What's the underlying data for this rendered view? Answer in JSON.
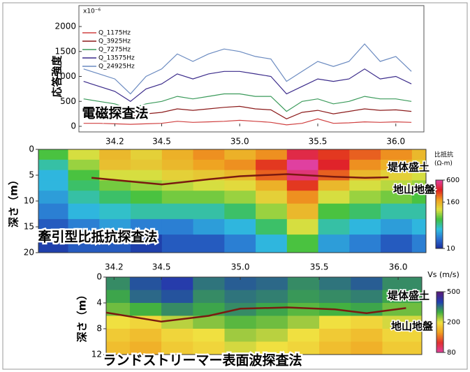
{
  "chart_data": [
    {
      "type": "line",
      "ylabel": "応答強度",
      "yunit": "x10⁻⁶",
      "xlim": [
        33.97,
        36.18
      ],
      "xticks": [
        34.2,
        34.5,
        {
          "value": 35,
          "label": "35.0"
        },
        35.5,
        {
          "value": 36,
          "label": "36.0"
        }
      ],
      "ylim": [
        0,
        2000
      ],
      "yticks": [
        0,
        500,
        1000,
        1500,
        2000
      ],
      "x": [
        34.0,
        34.1,
        34.2,
        34.3,
        34.4,
        34.5,
        34.6,
        34.7,
        34.8,
        34.9,
        35.0,
        35.1,
        35.2,
        35.3,
        35.4,
        35.5,
        35.6,
        35.7,
        35.8,
        35.9,
        36.0,
        36.1
      ],
      "series": [
        {
          "name": "Q_1175Hz",
          "color": "#d04040",
          "values": [
            60,
            60,
            50,
            40,
            50,
            60,
            100,
            80,
            90,
            100,
            120,
            100,
            80,
            30,
            60,
            150,
            60,
            70,
            90,
            80,
            90,
            80
          ]
        },
        {
          "name": "Q_3925Hz",
          "color": "#8b1a1a",
          "values": [
            300,
            270,
            240,
            200,
            250,
            280,
            350,
            320,
            350,
            380,
            400,
            350,
            330,
            150,
            280,
            320,
            250,
            300,
            350,
            320,
            330,
            300
          ]
        },
        {
          "name": "Q_7275Hz",
          "color": "#3a9a5a",
          "values": [
            550,
            500,
            450,
            350,
            450,
            500,
            600,
            550,
            600,
            650,
            650,
            600,
            600,
            300,
            500,
            550,
            450,
            500,
            600,
            550,
            550,
            500
          ]
        },
        {
          "name": "Q_13575Hz",
          "color": "#3a2a8a",
          "values": [
            900,
            800,
            700,
            500,
            750,
            850,
            1050,
            950,
            1050,
            1100,
            1100,
            1050,
            1000,
            650,
            800,
            950,
            900,
            950,
            1150,
            950,
            1000,
            850
          ]
        },
        {
          "name": "Q_24925Hz",
          "color": "#6a8ac0",
          "values": [
            1150,
            1050,
            950,
            650,
            1000,
            1150,
            1450,
            1300,
            1450,
            1550,
            1500,
            1400,
            1350,
            900,
            1100,
            1300,
            1200,
            1300,
            1650,
            1300,
            1400,
            1100
          ]
        }
      ],
      "annotations": [
        "電磁探査法"
      ]
    },
    {
      "type": "heatmap",
      "ylabel": "深さ（m）",
      "xlim": [
        33.71,
        36.19
      ],
      "ylim": [
        0,
        20
      ],
      "yticks": [
        0,
        5,
        10,
        15,
        20
      ],
      "x": [
        33.8,
        34.0,
        34.2,
        34.4,
        34.6,
        34.8,
        35.0,
        35.2,
        35.4,
        35.6,
        35.8,
        36.0,
        36.2
      ],
      "y": [
        1,
        3,
        5,
        7,
        9,
        12,
        15,
        18
      ],
      "z": [
        [
          60,
          100,
          150,
          120,
          160,
          200,
          160,
          200,
          400,
          300,
          250,
          200,
          150
        ],
        [
          40,
          80,
          140,
          130,
          150,
          180,
          200,
          300,
          600,
          350,
          200,
          160,
          120
        ],
        [
          30,
          60,
          100,
          100,
          120,
          130,
          150,
          250,
          500,
          250,
          150,
          120,
          100
        ],
        [
          30,
          50,
          70,
          80,
          90,
          100,
          110,
          160,
          300,
          150,
          100,
          90,
          80
        ],
        [
          25,
          40,
          50,
          60,
          70,
          70,
          80,
          120,
          200,
          100,
          80,
          70,
          60
        ],
        [
          20,
          30,
          35,
          40,
          40,
          40,
          50,
          80,
          150,
          60,
          50,
          40,
          40
        ],
        [
          15,
          20,
          25,
          20,
          20,
          25,
          30,
          50,
          100,
          40,
          30,
          25,
          30
        ],
        [
          12,
          15,
          15,
          12,
          15,
          15,
          20,
          30,
          60,
          25,
          20,
          15,
          20
        ]
      ],
      "log_color": true,
      "clim": [
        10,
        600
      ],
      "cticks": [
        10,
        160,
        600
      ],
      "colorscale": [
        "#1a2a9a",
        "#2a70d0",
        "#30c0e0",
        "#40c040",
        "#e0e040",
        "#f0a020",
        "#e02020",
        "#e040a0"
      ],
      "colorbar_label": [
        "比抵抗",
        "(Ω-m)"
      ],
      "boundary": {
        "color": "#7a1a10",
        "x": [
          34.05,
          34.5,
          34.8,
          35.0,
          35.3,
          35.6,
          35.8,
          35.95
        ],
        "values": [
          5.5,
          6.8,
          5.8,
          5.2,
          4.8,
          5.3,
          5.5,
          5.4
        ]
      },
      "annotations": [
        "堤体盛土",
        "地山地盤",
        "牽引型比抵抗探査法"
      ]
    },
    {
      "type": "heatmap",
      "ylabel": "深さ（m）",
      "xlim": [
        34.15,
        36.15
      ],
      "xticks": [
        34.2,
        34.5,
        {
          "value": 35,
          "label": "35.0"
        },
        35.5,
        {
          "value": 36,
          "label": "36.0"
        }
      ],
      "ylim": [
        0,
        12
      ],
      "yticks": [
        0,
        4,
        8,
        12
      ],
      "x": [
        34.2,
        34.4,
        34.6,
        34.8,
        35.0,
        35.2,
        35.4,
        35.6,
        35.8,
        36.0
      ],
      "y": [
        1,
        3,
        5,
        7,
        9,
        11
      ],
      "z": [
        [
          300,
          350,
          380,
          320,
          340,
          330,
          300,
          320,
          340,
          300
        ],
        [
          280,
          330,
          350,
          300,
          320,
          310,
          290,
          300,
          310,
          280
        ],
        [
          250,
          270,
          300,
          280,
          300,
          280,
          260,
          270,
          280,
          250
        ],
        [
          200,
          190,
          220,
          240,
          260,
          250,
          230,
          200,
          190,
          210
        ],
        [
          180,
          170,
          190,
          200,
          230,
          220,
          200,
          180,
          170,
          190
        ],
        [
          170,
          160,
          180,
          190,
          210,
          200,
          190,
          170,
          160,
          180
        ]
      ],
      "log_color": true,
      "clim": [
        80,
        500
      ],
      "cticks": [
        80,
        200,
        500
      ],
      "colorscale": [
        "#e040a0",
        "#e03030",
        "#f0a020",
        "#f0e040",
        "#40b040",
        "#2040b0",
        "#5a1a7a"
      ],
      "colorbar_label": [
        "Vs (m/s)"
      ],
      "boundary": {
        "color": "#7a1a10",
        "x": [
          34.15,
          34.5,
          34.8,
          35.0,
          35.3,
          35.6,
          35.8,
          36.05
        ],
        "values": [
          5.5,
          6.9,
          6.0,
          4.9,
          4.7,
          5.0,
          5.6,
          4.8
        ]
      },
      "annotations": [
        "堤体盛土",
        "地山地盤",
        "ランドストリーマー表面波探査法"
      ]
    }
  ]
}
